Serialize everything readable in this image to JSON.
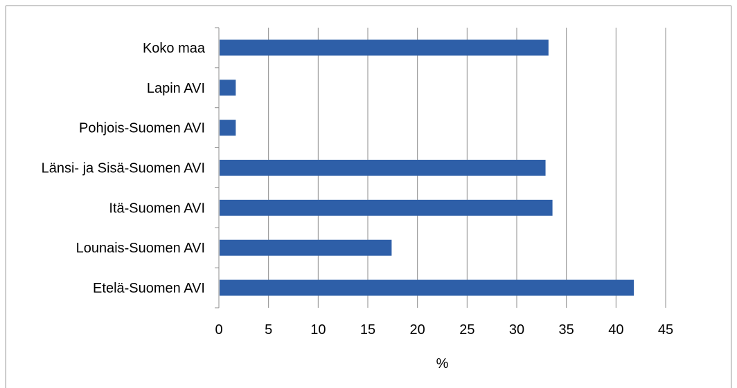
{
  "chart_data": {
    "type": "bar",
    "orientation": "horizontal",
    "categories": [
      "Koko maa",
      "Lapin AVI",
      "Pohjois-Suomen AVI",
      "Länsi- ja Sisä-Suomen AVI",
      "Itä-Suomen AVI",
      "Lounais-Suomen AVI",
      "Etelä-Suomen AVI"
    ],
    "values": [
      33.2,
      1.7,
      1.7,
      32.9,
      33.6,
      17.4,
      41.8
    ],
    "xlabel": "%",
    "xlim": [
      0,
      45
    ],
    "xticks": [
      0,
      5,
      10,
      15,
      20,
      25,
      30,
      35,
      40,
      45
    ],
    "bar_color": "#2e5fa8",
    "grid": "vertical",
    "legend": "none"
  }
}
